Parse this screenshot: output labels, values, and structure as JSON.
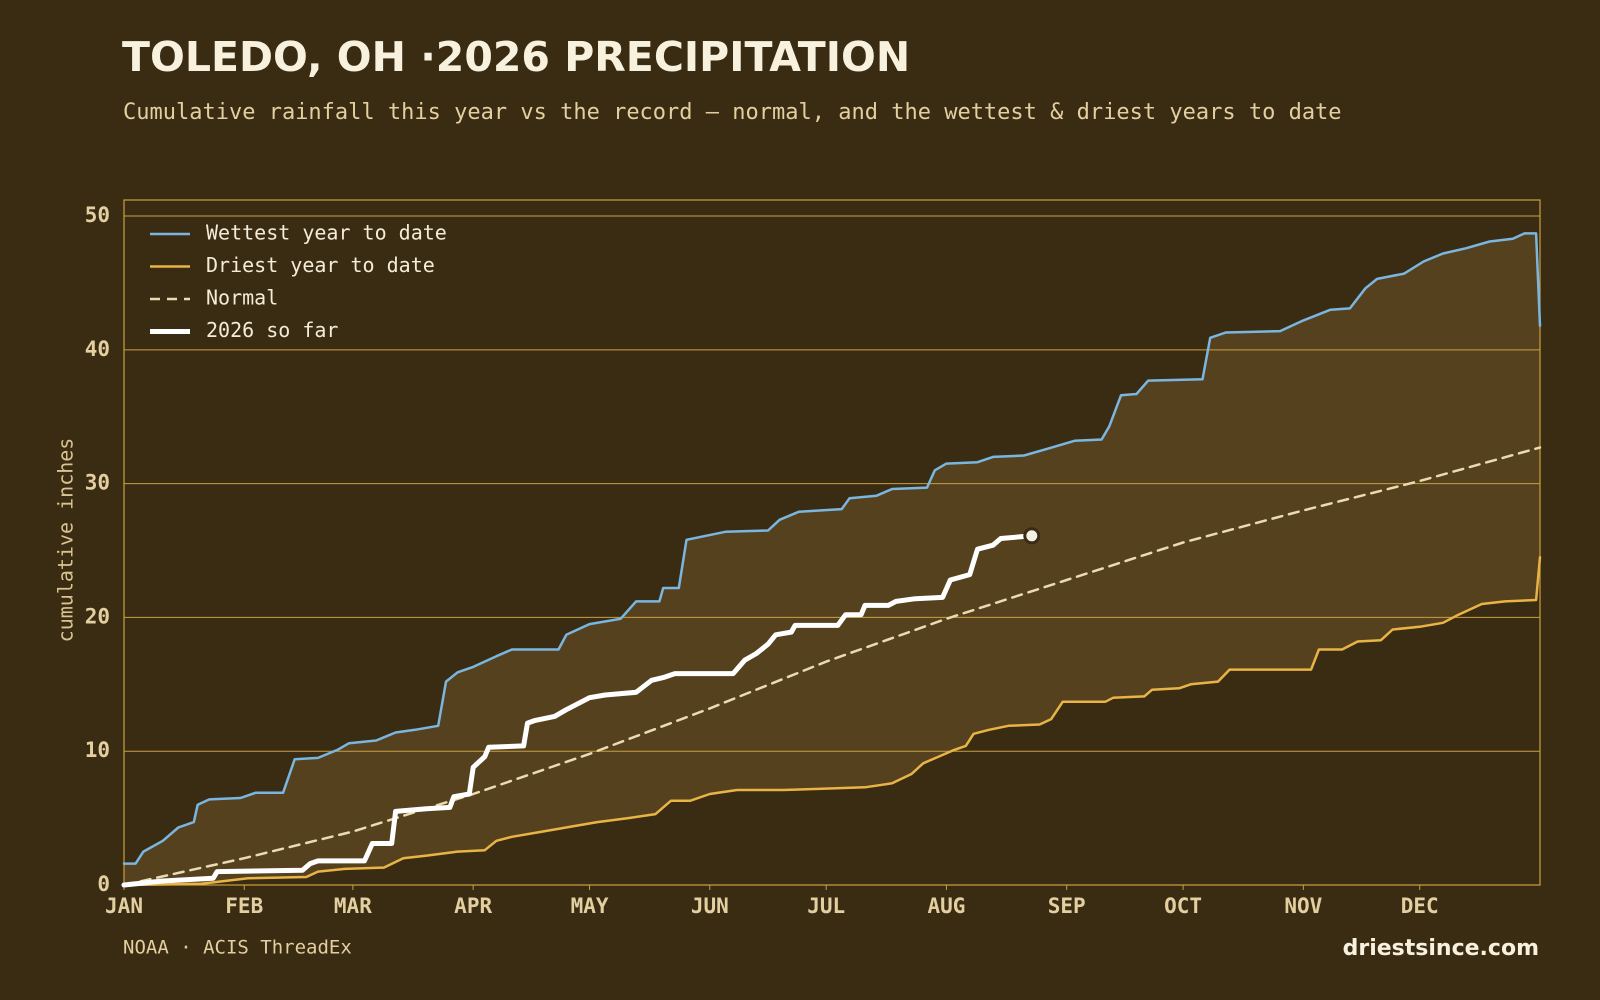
{
  "chart_data": {
    "type": "line",
    "title": "TOLEDO, OH ·2026 PRECIPITATION",
    "subtitle": "Cumulative rainfall this year vs the record — normal, and the wettest & driest years to date",
    "ylabel": "cumulative inches",
    "source": "NOAA · ACIS ThreadEx",
    "credit": "driestsince.com",
    "xlim": [
      0,
      365
    ],
    "xticks": [
      {
        "value": 0,
        "label": "JAN"
      },
      {
        "value": 31,
        "label": "FEB"
      },
      {
        "value": 59,
        "label": "MAR"
      },
      {
        "value": 90,
        "label": "APR"
      },
      {
        "value": 120,
        "label": "MAY"
      },
      {
        "value": 151,
        "label": "JUN"
      },
      {
        "value": 181,
        "label": "JUL"
      },
      {
        "value": 212,
        "label": "AUG"
      },
      {
        "value": 243,
        "label": "SEP"
      },
      {
        "value": 273,
        "label": "OCT"
      },
      {
        "value": 304,
        "label": "NOV"
      },
      {
        "value": 334,
        "label": "DEC"
      }
    ],
    "ylim": [
      0,
      51.2
    ],
    "yticks": [
      0,
      10,
      20,
      30,
      40,
      50
    ],
    "grid": true,
    "legend": "upper left",
    "fill_between": [
      0,
      1
    ],
    "fill_color": "#56411f",
    "series": [
      {
        "name": "Wettest year to date",
        "color": "#7ab6e0",
        "linestyle": "solid",
        "linewidth": 2.5,
        "x": [
          0,
          3,
          5,
          10,
          14,
          18,
          19,
          22,
          30,
          34,
          41,
          44,
          50,
          55,
          58,
          65,
          70,
          75,
          81,
          83,
          86,
          90,
          96,
          100,
          112,
          114,
          120,
          128,
          132,
          138,
          139,
          143,
          145,
          150,
          155,
          166,
          169,
          174,
          185,
          187,
          194,
          198,
          207,
          209,
          212,
          220,
          224,
          232,
          238,
          245,
          252,
          254,
          257,
          261,
          264,
          278,
          280,
          284,
          298,
          304,
          311,
          316,
          320,
          323,
          330,
          335,
          340,
          346,
          352,
          358,
          361,
          364,
          365
        ],
        "values": [
          1.6,
          1.6,
          2.5,
          3.3,
          4.3,
          4.7,
          6.0,
          6.4,
          6.5,
          6.9,
          6.9,
          9.4,
          9.5,
          10.1,
          10.6,
          10.8,
          11.4,
          11.6,
          11.9,
          15.2,
          15.9,
          16.3,
          17.1,
          17.6,
          17.6,
          18.7,
          19.5,
          19.9,
          21.2,
          21.2,
          22.2,
          22.2,
          25.8,
          26.1,
          26.4,
          26.5,
          27.3,
          27.9,
          28.1,
          28.9,
          29.1,
          29.6,
          29.7,
          31.0,
          31.5,
          31.6,
          32.0,
          32.1,
          32.6,
          33.2,
          33.3,
          34.3,
          36.6,
          36.7,
          37.7,
          37.8,
          40.9,
          41.3,
          41.4,
          42.2,
          43.0,
          43.1,
          44.6,
          45.3,
          45.7,
          46.6,
          47.2,
          47.6,
          48.1,
          48.3,
          48.7,
          48.7,
          41.8
        ]
      },
      {
        "name": "Driest year to date",
        "color": "#e8b446",
        "linestyle": "solid",
        "linewidth": 2.5,
        "x": [
          0,
          20,
          32,
          47,
          50,
          57,
          67,
          72,
          78,
          86,
          93,
          96,
          100,
          108,
          116,
          122,
          130,
          137,
          141,
          146,
          151,
          158,
          170,
          180,
          191,
          198,
          203,
          206,
          210,
          214,
          217,
          219,
          223,
          228,
          236,
          239,
          242,
          253,
          255,
          263,
          265,
          272,
          275,
          282,
          285,
          306,
          308,
          314,
          318,
          324,
          327,
          334,
          340,
          344,
          350,
          356,
          364,
          365
        ],
        "values": [
          0,
          0.1,
          0.5,
          0.6,
          1.0,
          1.2,
          1.3,
          2.0,
          2.2,
          2.5,
          2.6,
          3.3,
          3.6,
          4.0,
          4.4,
          4.7,
          5.0,
          5.3,
          6.3,
          6.3,
          6.8,
          7.1,
          7.1,
          7.2,
          7.3,
          7.6,
          8.3,
          9.1,
          9.6,
          10.1,
          10.4,
          11.3,
          11.6,
          11.9,
          12.0,
          12.4,
          13.7,
          13.7,
          14.0,
          14.1,
          14.6,
          14.7,
          15.0,
          15.2,
          16.1,
          16.1,
          17.6,
          17.6,
          18.2,
          18.3,
          19.1,
          19.3,
          19.6,
          20.2,
          21.0,
          21.2,
          21.3,
          24.5
        ]
      },
      {
        "name": "Normal",
        "color": "#e8dcb0",
        "linestyle": "dashed",
        "linewidth": 2.5,
        "x": [
          0,
          31,
          59,
          90,
          120,
          151,
          181,
          212,
          243,
          273,
          304,
          334,
          365
        ],
        "values": [
          0,
          2.0,
          4.0,
          6.8,
          9.8,
          13.2,
          16.7,
          19.9,
          22.8,
          25.6,
          28.0,
          30.2,
          32.7
        ]
      },
      {
        "name": "2026 so far",
        "color": "#ffffff",
        "linestyle": "solid",
        "linewidth": 5,
        "x": [
          0,
          10,
          23,
          24,
          46,
          48,
          50,
          62,
          64,
          69,
          70,
          78,
          84,
          85,
          89,
          90,
          93,
          94,
          103,
          104,
          106,
          111,
          114,
          118,
          120,
          124,
          132,
          136,
          139,
          142,
          157,
          160,
          163,
          166,
          168,
          172,
          173,
          184,
          186,
          190,
          191,
          197,
          199,
          204,
          211,
          213,
          218,
          220,
          224,
          226,
          234
        ],
        "values": [
          0,
          0.3,
          0.5,
          1.0,
          1.1,
          1.6,
          1.8,
          1.8,
          3.1,
          3.1,
          5.5,
          5.7,
          5.8,
          6.6,
          6.8,
          8.8,
          9.6,
          10.3,
          10.4,
          12.1,
          12.3,
          12.6,
          13.1,
          13.7,
          14.0,
          14.2,
          14.4,
          15.3,
          15.5,
          15.8,
          15.8,
          16.8,
          17.3,
          18.0,
          18.7,
          18.9,
          19.4,
          19.4,
          20.2,
          20.2,
          20.9,
          20.9,
          21.2,
          21.4,
          21.5,
          22.8,
          23.2,
          25.1,
          25.4,
          25.9,
          26.1
        ]
      }
    ]
  }
}
